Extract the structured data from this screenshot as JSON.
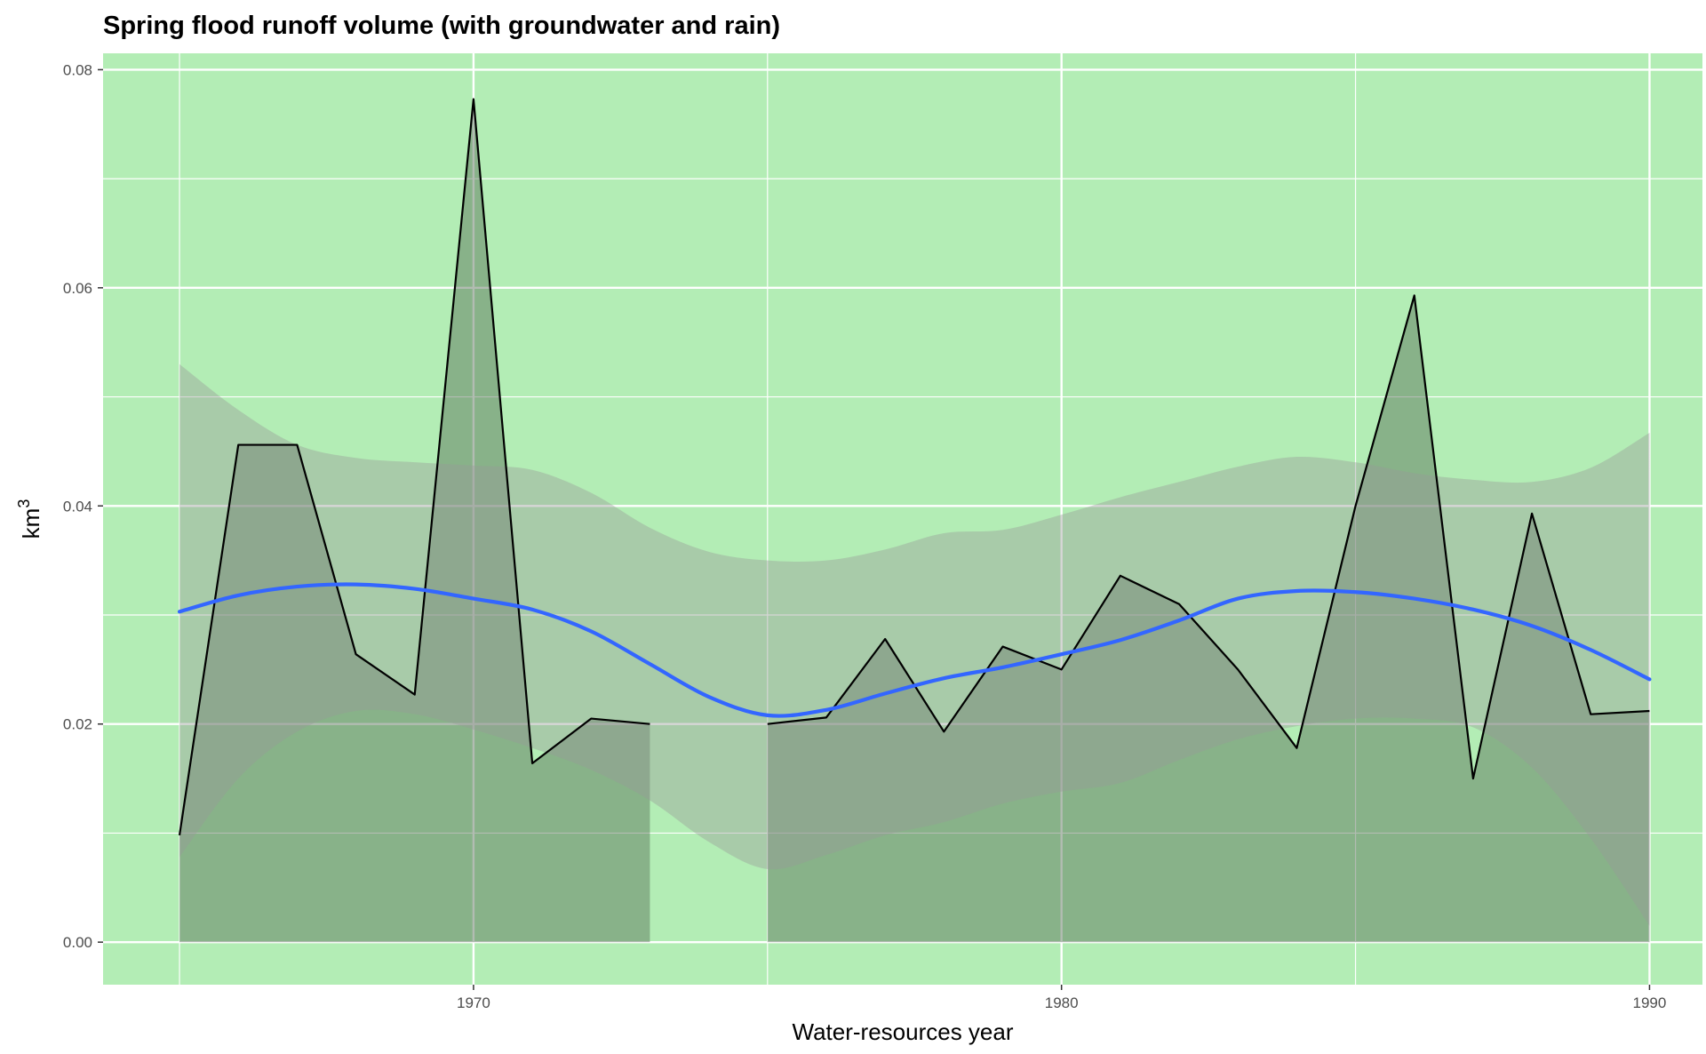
{
  "chart_data": {
    "type": "area",
    "title": "Spring flood runoff volume (with groundwater and rain)",
    "xlabel": "Water-resources year",
    "ylabel": "km",
    "ylabel_superscript": "3",
    "xlim": [
      1963.7,
      1990.9
    ],
    "ylim": [
      -0.0039,
      0.0815
    ],
    "x_ticks": [
      1970,
      1980,
      1990
    ],
    "x_tick_labels": [
      "1970",
      "1980",
      "1990"
    ],
    "y_ticks": [
      0,
      0.02,
      0.04,
      0.06,
      0.08
    ],
    "y_tick_labels": [
      "0.00",
      "0.02",
      "0.04",
      "0.06",
      "0.08"
    ],
    "grid": true,
    "colors": {
      "panel_background": "#b3edb5",
      "grid": "#ffffff",
      "area_fill": "#556b55",
      "observed_line": "#000000",
      "smooth_line": "#3366ff",
      "confidence_band": "#999999"
    },
    "observed_segments": [
      {
        "x": [
          1965,
          1966,
          1967,
          1968,
          1969,
          1970,
          1971,
          1972,
          1973
        ],
        "y": [
          0.0098,
          0.0456,
          0.0456,
          0.0264,
          0.0227,
          0.0773,
          0.0164,
          0.0205,
          0.02
        ]
      },
      {
        "x": [
          1975,
          1976,
          1977,
          1978,
          1979,
          1980,
          1981,
          1982,
          1983,
          1984,
          1985,
          1986,
          1987,
          1988,
          1989,
          1990
        ],
        "y": [
          0.02,
          0.0206,
          0.0278,
          0.0193,
          0.0271,
          0.025,
          0.0336,
          0.031,
          0.025,
          0.0178,
          0.04,
          0.0593,
          0.015,
          0.0393,
          0.0209,
          0.0212
        ]
      }
    ],
    "smooth": {
      "x": [
        1965,
        1966,
        1967,
        1968,
        1969,
        1970,
        1971,
        1972,
        1973,
        1974,
        1975,
        1976,
        1977,
        1978,
        1979,
        1980,
        1981,
        1982,
        1983,
        1984,
        1985,
        1986,
        1987,
        1988,
        1989,
        1990
      ],
      "y": [
        0.0303,
        0.0318,
        0.0326,
        0.0328,
        0.0324,
        0.0315,
        0.0305,
        0.0285,
        0.0255,
        0.0225,
        0.0208,
        0.0213,
        0.0228,
        0.0242,
        0.0252,
        0.0264,
        0.0277,
        0.0295,
        0.0315,
        0.0322,
        0.0321,
        0.0315,
        0.0305,
        0.029,
        0.0268,
        0.0241
      ],
      "lower": [
        0.0078,
        0.015,
        0.0193,
        0.0212,
        0.0209,
        0.0195,
        0.0178,
        0.0158,
        0.013,
        0.0092,
        0.0067,
        0.008,
        0.0098,
        0.011,
        0.0127,
        0.0138,
        0.0146,
        0.0167,
        0.0186,
        0.0198,
        0.0205,
        0.0205,
        0.0197,
        0.016,
        0.0095,
        0.0015
      ],
      "upper": [
        0.053,
        0.0488,
        0.0456,
        0.0444,
        0.044,
        0.0437,
        0.0433,
        0.0412,
        0.038,
        0.0358,
        0.035,
        0.035,
        0.036,
        0.0375,
        0.0378,
        0.0392,
        0.0408,
        0.0422,
        0.0436,
        0.0445,
        0.044,
        0.043,
        0.0424,
        0.0422,
        0.0435,
        0.0467
      ]
    }
  }
}
